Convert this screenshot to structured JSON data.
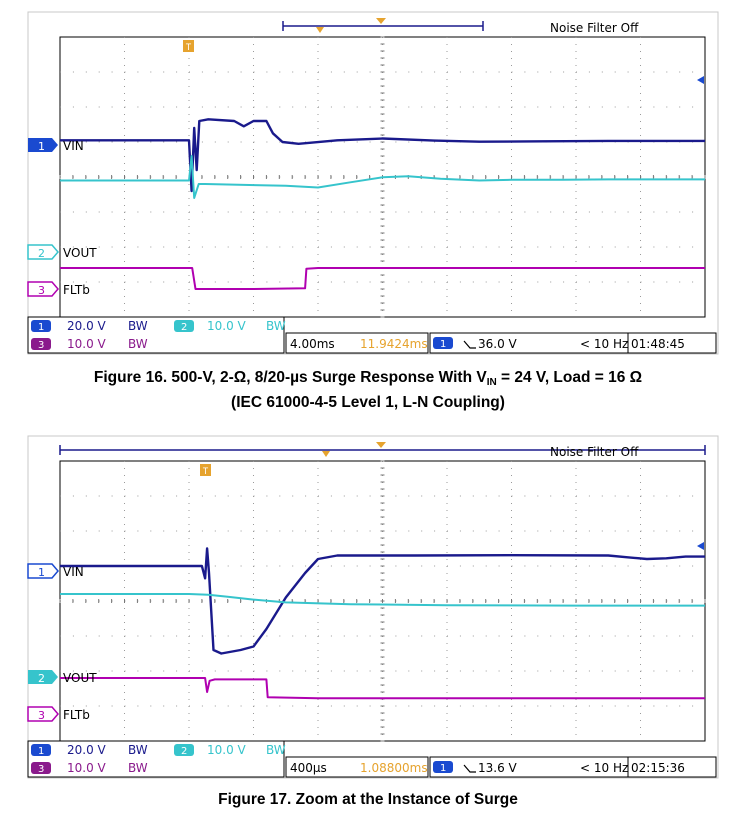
{
  "figures": [
    {
      "noise_filter": "Noise Filter Off",
      "channel_markers": [
        "1",
        "2",
        "3"
      ],
      "channel_labels": [
        "VIN",
        "VOUT",
        "FLTb"
      ],
      "readout": {
        "ch1_scale": "20.0 V",
        "ch1_bw": "BW",
        "ch2_scale": "10.0 V",
        "ch2_bw": "BW",
        "ch3_scale": "10.0 V",
        "ch3_bw": "BW",
        "timebase": "4.00ms",
        "trigger_pos": "11.9424ms",
        "trig_ch": "1",
        "trigger_level": "36.0 V",
        "freq": "< 10 Hz",
        "time": "01:48:45"
      },
      "caption": {
        "pre": "Figure 16. 500-V, 2-Ω, 8/20-µs Surge Response With V",
        "sub": "IN",
        "post": " = 24 V, Load = 16 Ω",
        "line2": "(IEC 61000-4-5 Level 1, L-N Coupling)"
      }
    },
    {
      "noise_filter": "Noise Filter Off",
      "channel_markers": [
        "1",
        "2",
        "3"
      ],
      "channel_labels": [
        "VIN",
        "VOUT",
        "FLTb"
      ],
      "readout": {
        "ch1_scale": "20.0 V",
        "ch1_bw": "BW",
        "ch2_scale": "10.0 V",
        "ch2_bw": "BW",
        "ch3_scale": "10.0 V",
        "ch3_bw": "BW",
        "timebase": "400µs",
        "trigger_pos": "1.08800ms",
        "trig_ch": "1",
        "trigger_level": "13.6 V",
        "freq": "< 10 Hz",
        "time": "02:15:36"
      },
      "caption": {
        "pre": "Figure 17. Zoom at the Instance of Surge",
        "sub": "",
        "post": "",
        "line2": ""
      }
    }
  ],
  "chart_data": [
    {
      "type": "line",
      "grid": true,
      "x_divisions": 10,
      "y_divisions": 8,
      "series": [
        {
          "name": "VIN",
          "color": "#1a1a8c",
          "points": [
            [
              0,
              1.05
            ],
            [
              2.0,
              1.05
            ],
            [
              2.04,
              -0.4
            ],
            [
              2.08,
              1.4
            ],
            [
              2.12,
              0.2
            ],
            [
              2.16,
              1.6
            ],
            [
              2.3,
              1.65
            ],
            [
              2.7,
              1.6
            ],
            [
              2.85,
              1.45
            ],
            [
              3.0,
              1.6
            ],
            [
              3.2,
              1.6
            ],
            [
              3.3,
              1.25
            ],
            [
              3.45,
              1.0
            ],
            [
              3.7,
              0.95
            ],
            [
              4.3,
              1.05
            ],
            [
              5.0,
              1.1
            ],
            [
              5.8,
              1.04
            ],
            [
              6.5,
              1.01
            ],
            [
              7.5,
              1.02
            ],
            [
              8.5,
              1.03
            ],
            [
              10,
              1.03
            ]
          ]
        },
        {
          "name": "VOUT",
          "color": "#36c4cc",
          "points": [
            [
              0,
              -0.1
            ],
            [
              2.0,
              -0.1
            ],
            [
              2.04,
              0.6
            ],
            [
              2.08,
              -0.6
            ],
            [
              2.15,
              -0.2
            ],
            [
              2.25,
              -0.2
            ],
            [
              3.5,
              -0.25
            ],
            [
              4.0,
              -0.3
            ],
            [
              4.5,
              -0.15
            ],
            [
              5.0,
              -0.01
            ],
            [
              5.4,
              0.02
            ],
            [
              5.9,
              -0.05
            ],
            [
              6.5,
              -0.1
            ],
            [
              7.0,
              -0.08
            ],
            [
              7.8,
              -0.08
            ],
            [
              8.5,
              -0.07
            ],
            [
              10,
              -0.07
            ]
          ]
        },
        {
          "name": "FLTb",
          "color": "#b000b0",
          "points": [
            [
              0,
              -2.6
            ],
            [
              2.05,
              -2.6
            ],
            [
              2.1,
              -3.2
            ],
            [
              3.0,
              -3.2
            ],
            [
              3.8,
              -3.18
            ],
            [
              3.82,
              -2.62
            ],
            [
              4.0,
              -2.6
            ],
            [
              10,
              -2.6
            ]
          ]
        }
      ]
    },
    {
      "type": "line",
      "grid": true,
      "x_divisions": 10,
      "y_divisions": 8,
      "series": [
        {
          "name": "VIN",
          "color": "#1a1a8c",
          "points": [
            [
              0,
              1.0
            ],
            [
              2.2,
              1.0
            ],
            [
              2.25,
              0.65
            ],
            [
              2.28,
              1.5
            ],
            [
              2.31,
              0.8
            ],
            [
              2.38,
              -1.4
            ],
            [
              2.5,
              -1.5
            ],
            [
              2.8,
              -1.4
            ],
            [
              3.0,
              -1.3
            ],
            [
              3.2,
              -0.8
            ],
            [
              3.5,
              0.1
            ],
            [
              3.8,
              0.8
            ],
            [
              4.0,
              1.2
            ],
            [
              4.3,
              1.3
            ],
            [
              5.5,
              1.3
            ],
            [
              7.0,
              1.31
            ],
            [
              8.5,
              1.3
            ],
            [
              8.8,
              1.25
            ],
            [
              9.1,
              1.2
            ],
            [
              9.4,
              1.22
            ],
            [
              9.7,
              1.27
            ],
            [
              10,
              1.27
            ]
          ]
        },
        {
          "name": "VOUT",
          "color": "#36c4cc",
          "points": [
            [
              0,
              0.2
            ],
            [
              2.0,
              0.2
            ],
            [
              2.3,
              0.18
            ],
            [
              2.6,
              0.12
            ],
            [
              3.0,
              0.04
            ],
            [
              3.5,
              -0.04
            ],
            [
              4.5,
              -0.09
            ],
            [
              6,
              -0.12
            ],
            [
              8,
              -0.13
            ],
            [
              10,
              -0.13
            ]
          ]
        },
        {
          "name": "FLTb",
          "color": "#b000b0",
          "points": [
            [
              0,
              -2.2
            ],
            [
              2.25,
              -2.2
            ],
            [
              2.28,
              -2.6
            ],
            [
              2.32,
              -2.28
            ],
            [
              2.4,
              -2.24
            ],
            [
              3.2,
              -2.24
            ],
            [
              3.22,
              -2.75
            ],
            [
              4.0,
              -2.78
            ],
            [
              10,
              -2.78
            ]
          ]
        }
      ]
    }
  ]
}
